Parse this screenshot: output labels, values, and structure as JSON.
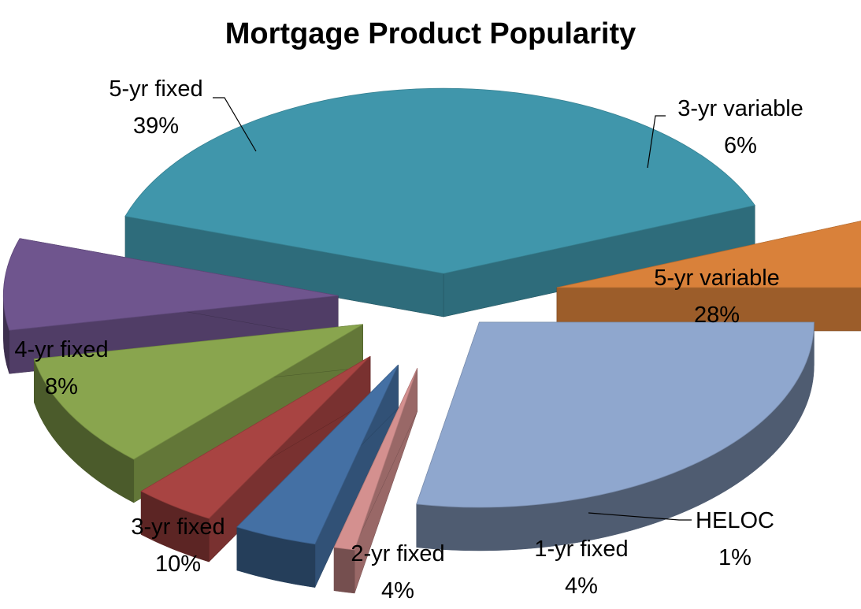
{
  "chart_data": {
    "type": "pie",
    "title": "Mortgage Product Popularity",
    "style": "3d-exploded",
    "slices": [
      {
        "label": "5-yr fixed",
        "value": 39,
        "value_label": "39%",
        "color": "#4096AB"
      },
      {
        "label": "3-yr variable",
        "value": 6,
        "value_label": "6%",
        "color": "#D9813A"
      },
      {
        "label": "5-yr variable",
        "value": 28,
        "value_label": "28%",
        "color": "#8FA7CE"
      },
      {
        "label": "HELOC",
        "value": 1,
        "value_label": "1%",
        "color": "#D4908F"
      },
      {
        "label": "1-yr fixed",
        "value": 4,
        "value_label": "4%",
        "color": "#4470A4"
      },
      {
        "label": "2-yr fixed",
        "value": 4,
        "value_label": "4%",
        "color": "#A84442"
      },
      {
        "label": "3-yr fixed",
        "value": 10,
        "value_label": "10%",
        "color": "#89A54E"
      },
      {
        "label": "4-yr fixed",
        "value": 8,
        "value_label": "8%",
        "color": "#6F558E"
      }
    ],
    "legend": "none"
  }
}
